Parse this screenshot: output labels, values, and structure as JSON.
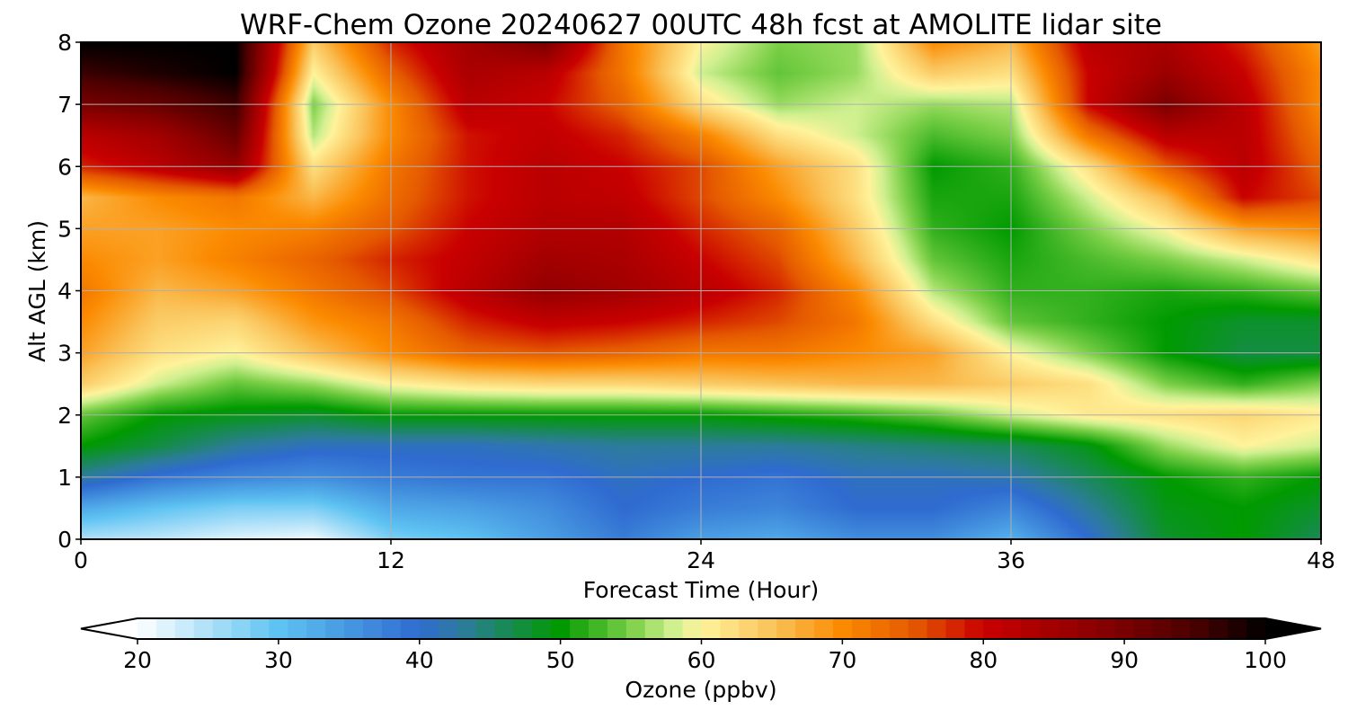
{
  "chart_data": {
    "type": "heatmap",
    "title": "WRF-Chem Ozone  20240627 00UTC 48h fcst at AMOLITE lidar site",
    "xlabel": "Forecast Time (Hour)",
    "ylabel": "Alt AGL (km)",
    "xlim": [
      0,
      48
    ],
    "ylim": [
      0,
      8
    ],
    "xticks": [
      "0",
      "12",
      "24",
      "36",
      "48"
    ],
    "yticks": [
      "0",
      "1",
      "2",
      "3",
      "4",
      "5",
      "6",
      "7",
      "8"
    ],
    "grid": true,
    "x": [
      0,
      3,
      6,
      9,
      12,
      15,
      18,
      21,
      24,
      27,
      30,
      33,
      36,
      39,
      42,
      45,
      48
    ],
    "y": [
      0,
      0.5,
      1,
      1.5,
      2,
      2.5,
      3,
      3.5,
      4,
      4.5,
      5,
      5.5,
      6,
      6.5,
      7,
      7.5,
      8
    ],
    "z": [
      [
        25,
        24,
        22,
        21,
        28,
        30,
        34,
        38,
        34,
        33,
        36,
        36,
        32,
        40,
        48,
        50,
        46
      ],
      [
        33,
        30,
        28,
        28,
        33,
        34,
        36,
        40,
        38,
        37,
        40,
        40,
        37,
        43,
        49,
        50,
        48
      ],
      [
        43,
        39,
        37,
        36,
        38,
        39,
        39,
        41,
        40,
        39,
        41,
        41,
        42,
        46,
        50,
        52,
        50
      ],
      [
        50,
        47,
        43,
        41,
        41,
        41,
        42,
        43,
        43,
        43,
        44,
        45,
        46,
        49,
        56,
        60,
        58
      ],
      [
        54,
        50,
        49,
        48,
        50,
        50,
        50,
        50,
        50,
        51,
        52,
        54,
        58,
        61,
        62,
        63,
        61
      ],
      [
        64,
        58,
        54,
        56,
        60,
        62,
        63,
        63,
        64,
        65,
        66,
        66,
        64,
        62,
        55,
        52,
        55
      ],
      [
        68,
        62,
        60,
        65,
        70,
        74,
        75,
        74,
        72,
        72,
        70,
        68,
        60,
        55,
        50,
        47,
        47
      ],
      [
        70,
        64,
        63,
        69,
        72,
        78,
        81,
        80,
        78,
        76,
        72,
        62,
        54,
        52,
        50,
        48,
        48
      ],
      [
        72,
        66,
        68,
        72,
        76,
        82,
        87,
        85,
        82,
        78,
        70,
        57,
        52,
        52,
        51,
        52,
        54
      ],
      [
        70,
        68,
        71,
        74,
        78,
        81,
        85,
        84,
        80,
        76,
        66,
        54,
        51,
        53,
        55,
        58,
        62
      ],
      [
        68,
        68,
        70,
        71,
        75,
        80,
        83,
        83,
        78,
        74,
        64,
        52,
        50,
        55,
        60,
        68,
        70
      ],
      [
        66,
        70,
        72,
        66,
        73,
        79,
        82,
        81,
        76,
        70,
        62,
        51,
        51,
        58,
        66,
        80,
        76
      ],
      [
        78,
        82,
        87,
        62,
        72,
        79,
        82,
        80,
        76,
        68,
        62,
        50,
        52,
        62,
        75,
        82,
        74
      ],
      [
        82,
        85,
        92,
        57,
        70,
        79,
        81,
        78,
        71,
        62,
        58,
        53,
        55,
        72,
        82,
        82,
        72
      ],
      [
        90,
        92,
        96,
        55,
        70,
        82,
        80,
        74,
        62,
        56,
        58,
        56,
        57,
        80,
        90,
        82,
        70
      ],
      [
        96,
        98,
        100,
        60,
        74,
        84,
        82,
        72,
        58,
        54,
        56,
        64,
        62,
        80,
        86,
        80,
        70
      ],
      [
        100,
        100,
        100,
        64,
        78,
        85,
        90,
        72,
        60,
        55,
        56,
        70,
        66,
        82,
        84,
        78,
        68
      ]
    ],
    "colorbar": {
      "label": "Ozone  (ppbv)",
      "ticks": [
        "20",
        "30",
        "40",
        "50",
        "60",
        "70",
        "80",
        "90",
        "100"
      ],
      "min": 20,
      "max": 100,
      "extend": "both",
      "colors": [
        {
          "v": 20,
          "c": "#ffffff"
        },
        {
          "v": 30,
          "c": "#5ec3f2"
        },
        {
          "v": 40,
          "c": "#2f6bd0"
        },
        {
          "v": 43,
          "c": "#2d7c9c"
        },
        {
          "v": 50,
          "c": "#009a00"
        },
        {
          "v": 55,
          "c": "#7cd048"
        },
        {
          "v": 58,
          "c": "#d0f090"
        },
        {
          "v": 60,
          "c": "#fff39c"
        },
        {
          "v": 65,
          "c": "#fac35a"
        },
        {
          "v": 70,
          "c": "#fb8a00"
        },
        {
          "v": 75,
          "c": "#e55a00"
        },
        {
          "v": 80,
          "c": "#c90000"
        },
        {
          "v": 88,
          "c": "#8b0000"
        },
        {
          "v": 95,
          "c": "#4a0000"
        },
        {
          "v": 100,
          "c": "#000000"
        }
      ]
    }
  }
}
